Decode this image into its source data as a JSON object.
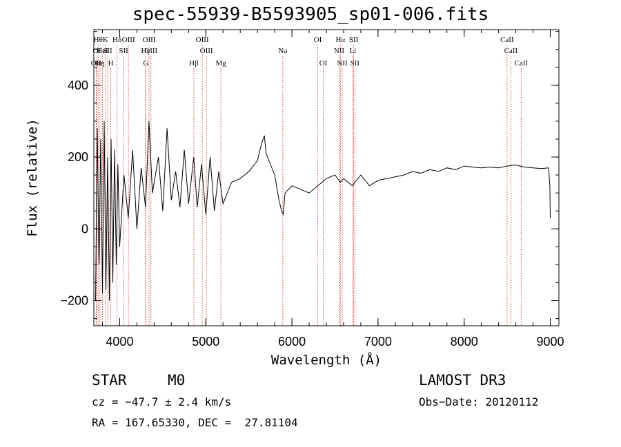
{
  "chart_data": {
    "type": "line",
    "title": "spec-55939-B5593905_sp01-006.fits",
    "xlabel": "Wavelength (Å)",
    "ylabel": "Flux (relative)",
    "xlim": [
      3700,
      9100
    ],
    "ylim": [
      -270,
      555
    ],
    "xticks": [
      4000,
      5000,
      6000,
      7000,
      8000,
      9000
    ],
    "yticks": [
      -200,
      0,
      200,
      400
    ],
    "series": [
      {
        "name": "flux",
        "x": [
          3720,
          3740,
          3760,
          3780,
          3800,
          3820,
          3840,
          3860,
          3880,
          3900,
          3920,
          3940,
          3960,
          3980,
          4000,
          4050,
          4100,
          4150,
          4200,
          4250,
          4300,
          4340,
          4380,
          4450,
          4500,
          4550,
          4600,
          4650,
          4700,
          4750,
          4800,
          4860,
          4900,
          4950,
          5000,
          5050,
          5100,
          5150,
          5200,
          5300,
          5400,
          5500,
          5600,
          5650,
          5680,
          5700,
          5750,
          5800,
          5850,
          5880,
          5900,
          5920,
          6000,
          6100,
          6200,
          6300,
          6400,
          6500,
          6560,
          6600,
          6700,
          6800,
          6900,
          7000,
          7100,
          7200,
          7300,
          7400,
          7500,
          7600,
          7700,
          7800,
          7900,
          8000,
          8100,
          8200,
          8300,
          8400,
          8500,
          8600,
          8700,
          8800,
          8900,
          8980,
          8995,
          9000
        ],
        "y": [
          -200,
          280,
          -100,
          250,
          -180,
          300,
          -170,
          200,
          -200,
          250,
          -150,
          220,
          -100,
          180,
          -50,
          150,
          30,
          220,
          0,
          170,
          60,
          300,
          100,
          200,
          50,
          280,
          80,
          160,
          60,
          220,
          70,
          200,
          60,
          180,
          40,
          200,
          50,
          160,
          70,
          130,
          140,
          160,
          190,
          240,
          260,
          210,
          180,
          150,
          80,
          50,
          40,
          100,
          120,
          110,
          100,
          120,
          140,
          150,
          130,
          140,
          120,
          150,
          120,
          135,
          140,
          145,
          150,
          160,
          155,
          165,
          160,
          170,
          165,
          175,
          172,
          170,
          172,
          170,
          175,
          178,
          172,
          170,
          168,
          170,
          120,
          30
        ]
      }
    ],
    "line_labels": [
      {
        "wl": 3727,
        "text": "OII",
        "row": 2
      },
      {
        "wl": 3734,
        "text": "OI",
        "row": 1
      },
      {
        "wl": 3750,
        "text": "Hθ",
        "row": 0
      },
      {
        "wl": 3771,
        "text": "Hη",
        "row": 2
      },
      {
        "wl": 3800,
        "text": "HeI",
        "row": 1
      },
      {
        "wl": 3835,
        "text": "K",
        "row": 0
      },
      {
        "wl": 3860,
        "text": "SII",
        "row": 1
      },
      {
        "wl": 3897,
        "text": "H",
        "row": 2
      },
      {
        "wl": 3969,
        "text": "Hδ",
        "row": 0
      },
      {
        "wl": 4045,
        "text": "SII",
        "row": 1
      },
      {
        "wl": 4102,
        "text": "OIII",
        "row": 0
      },
      {
        "wl": 4300,
        "text": "Hγ",
        "row": 1
      },
      {
        "wl": 4304,
        "text": "G",
        "row": 2
      },
      {
        "wl": 4341,
        "text": "OIII",
        "row": 0
      },
      {
        "wl": 4363,
        "text": "OIII",
        "row": 1
      },
      {
        "wl": 4861,
        "text": "Hβ",
        "row": 2
      },
      {
        "wl": 4959,
        "text": "OIII",
        "row": 0
      },
      {
        "wl": 5007,
        "text": "OIII",
        "row": 1
      },
      {
        "wl": 5175,
        "text": "Mg",
        "row": 2
      },
      {
        "wl": 5894,
        "text": "Na",
        "row": 1
      },
      {
        "wl": 6300,
        "text": "OI",
        "row": 0
      },
      {
        "wl": 6364,
        "text": "OI",
        "row": 2
      },
      {
        "wl": 6548,
        "text": "NII",
        "row": 1
      },
      {
        "wl": 6563,
        "text": "Hα",
        "row": 0
      },
      {
        "wl": 6584,
        "text": "NII",
        "row": 2
      },
      {
        "wl": 6707,
        "text": "Li",
        "row": 1
      },
      {
        "wl": 6717,
        "text": "SII",
        "row": 0
      },
      {
        "wl": 6731,
        "text": "SII",
        "row": 2
      },
      {
        "wl": 8498,
        "text": "CaII",
        "row": 0
      },
      {
        "wl": 8542,
        "text": "CaII",
        "row": 1
      },
      {
        "wl": 8662,
        "text": "CaII",
        "row": 2
      }
    ]
  },
  "info": {
    "class_label": "STAR",
    "subclass": "M0",
    "survey": "LAMOST DR3",
    "cz": "cz = −47.7 ± 2.4 km/s",
    "obs_date": "Obs−Date: 20120112",
    "radec": "RA = 167.65330, DEC =  27.81104"
  }
}
